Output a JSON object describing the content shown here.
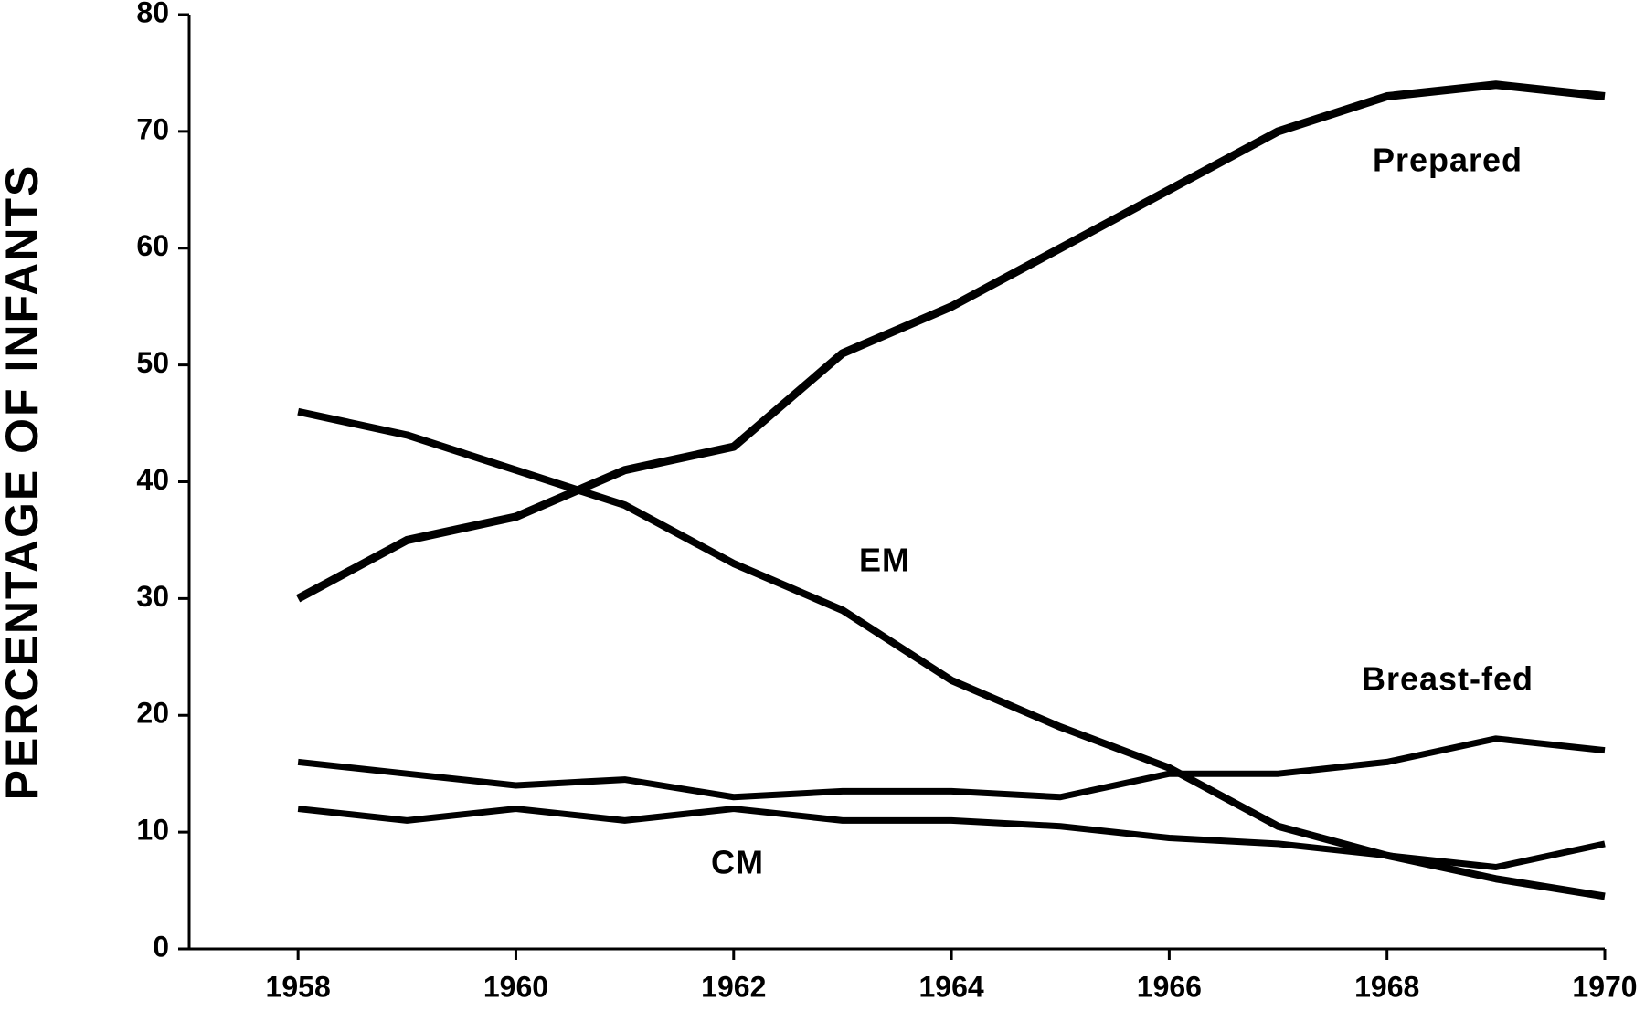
{
  "chart_data": {
    "type": "line",
    "y_label": "PERCENTAGE OF INFANTS",
    "x": [
      1958,
      1959,
      1960,
      1961,
      1962,
      1963,
      1964,
      1965,
      1966,
      1967,
      1968,
      1969,
      1970
    ],
    "series": [
      {
        "name": "Prepared",
        "color": "#000000",
        "values": [
          30,
          35,
          37,
          41,
          43,
          51,
          55,
          60,
          65,
          70,
          73,
          74,
          73
        ]
      },
      {
        "name": "EM",
        "color": "#000000",
        "values": [
          46,
          44,
          41,
          38,
          33,
          29,
          23,
          19,
          15.5,
          10.5,
          8,
          6,
          4.5
        ]
      },
      {
        "name": "Breast-fed",
        "color": "#000000",
        "values": [
          16,
          15,
          14,
          14.5,
          13,
          13.5,
          13.5,
          13,
          15,
          15,
          16,
          18,
          17
        ]
      },
      {
        "name": "CM",
        "color": "#000000",
        "values": [
          12,
          11,
          12,
          11,
          12,
          11,
          11,
          10.5,
          9.5,
          9,
          8,
          7,
          9
        ]
      }
    ],
    "xlim": [
      1957,
      1970
    ],
    "xticks": [
      1958,
      1960,
      1962,
      1964,
      1966,
      1968,
      1970
    ],
    "ylim": [
      0,
      80
    ],
    "yticks": [
      0,
      10,
      20,
      30,
      40,
      50,
      60,
      70,
      80
    ],
    "grid": false
  }
}
